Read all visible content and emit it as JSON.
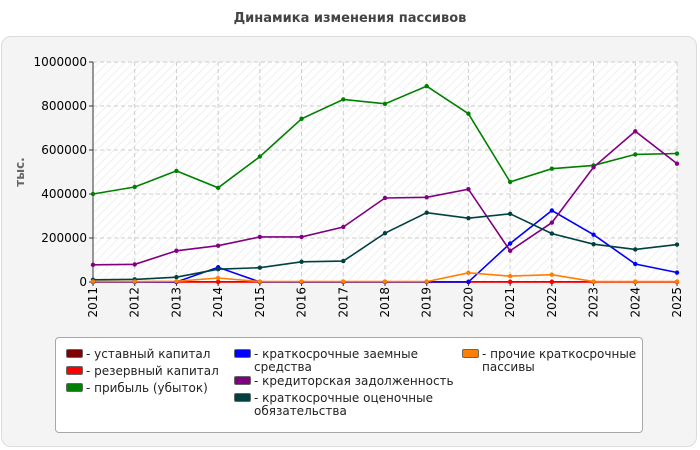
{
  "title": "Динамика изменения пассивов",
  "chart_data": {
    "type": "line",
    "title": "Динамика изменения пассивов",
    "xlabel": "",
    "ylabel": "тыс.",
    "ylim": [
      0,
      1000000
    ],
    "y_ticks": [
      0,
      200000,
      400000,
      600000,
      800000,
      1000000
    ],
    "y_tick_labels": [
      "0",
      "200000",
      "400000",
      "600000",
      "800000",
      "1000000"
    ],
    "grid": true,
    "legend_position": "bottom",
    "categories": [
      "2011",
      "2012",
      "2013",
      "2014",
      "2015",
      "2016",
      "2017",
      "2018",
      "2019",
      "2020",
      "2021",
      "2022",
      "2023",
      "2024",
      "2025"
    ],
    "series": [
      {
        "name": "- уставный капитал",
        "color": "#800000",
        "values": [
          1000,
          1000,
          1000,
          1000,
          1000,
          1000,
          1000,
          1000,
          1000,
          1000,
          1000,
          1000,
          1000,
          1000,
          1000
        ]
      },
      {
        "name": "- резервный капитал",
        "color": "#ff0000",
        "values": [
          0,
          0,
          0,
          0,
          0,
          0,
          0,
          0,
          0,
          0,
          0,
          0,
          0,
          0,
          0
        ]
      },
      {
        "name": "- прибыль (убыток)",
        "color": "#008000",
        "values": [
          400000,
          432000,
          505000,
          428000,
          570000,
          742000,
          830000,
          810000,
          890000,
          765000,
          455000,
          515000,
          530000,
          580000,
          584000
        ]
      },
      {
        "name": "- краткосрочные заемные средства",
        "color": "#0000ff",
        "values": [
          0,
          0,
          0,
          67000,
          0,
          0,
          0,
          0,
          0,
          0,
          175000,
          325000,
          215000,
          82000,
          43000
        ]
      },
      {
        "name": "- кредиторская задолженность",
        "color": "#800080",
        "values": [
          78000,
          80000,
          142000,
          165000,
          205000,
          205000,
          250000,
          382000,
          385000,
          422000,
          142000,
          270000,
          522000,
          685000,
          538000
        ]
      },
      {
        "name": "- краткосрочные оценочные обязательства",
        "color": "#004040",
        "values": [
          10000,
          12000,
          22000,
          58000,
          65000,
          92000,
          95000,
          222000,
          315000,
          290000,
          310000,
          220000,
          172000,
          148000,
          170000
        ]
      },
      {
        "name": "- прочие краткосрочные пассивы",
        "color": "#ff8000",
        "values": [
          2000,
          2000,
          3000,
          18000,
          2000,
          2000,
          2000,
          2000,
          2000,
          42000,
          27000,
          33000,
          2000,
          2000,
          2000
        ]
      }
    ]
  },
  "legend": [
    {
      "color": "#800000",
      "line1": "- уставный капитал",
      "line2": ""
    },
    {
      "color": "#ff0000",
      "line1": "- резервный капитал",
      "line2": ""
    },
    {
      "color": "#008000",
      "line1": "- прибыль (убыток)",
      "line2": ""
    },
    {
      "color": "#0000ff",
      "line1": "- краткосрочные заемные",
      "line2": "средства"
    },
    {
      "color": "#800080",
      "line1": "- кредиторская задолженность",
      "line2": ""
    },
    {
      "color": "#004040",
      "line1": "- краткосрочные оценочные",
      "line2": "обязательства"
    },
    {
      "color": "#ff8000",
      "line1": "- прочие краткосрочные",
      "line2": "пассивы"
    }
  ]
}
